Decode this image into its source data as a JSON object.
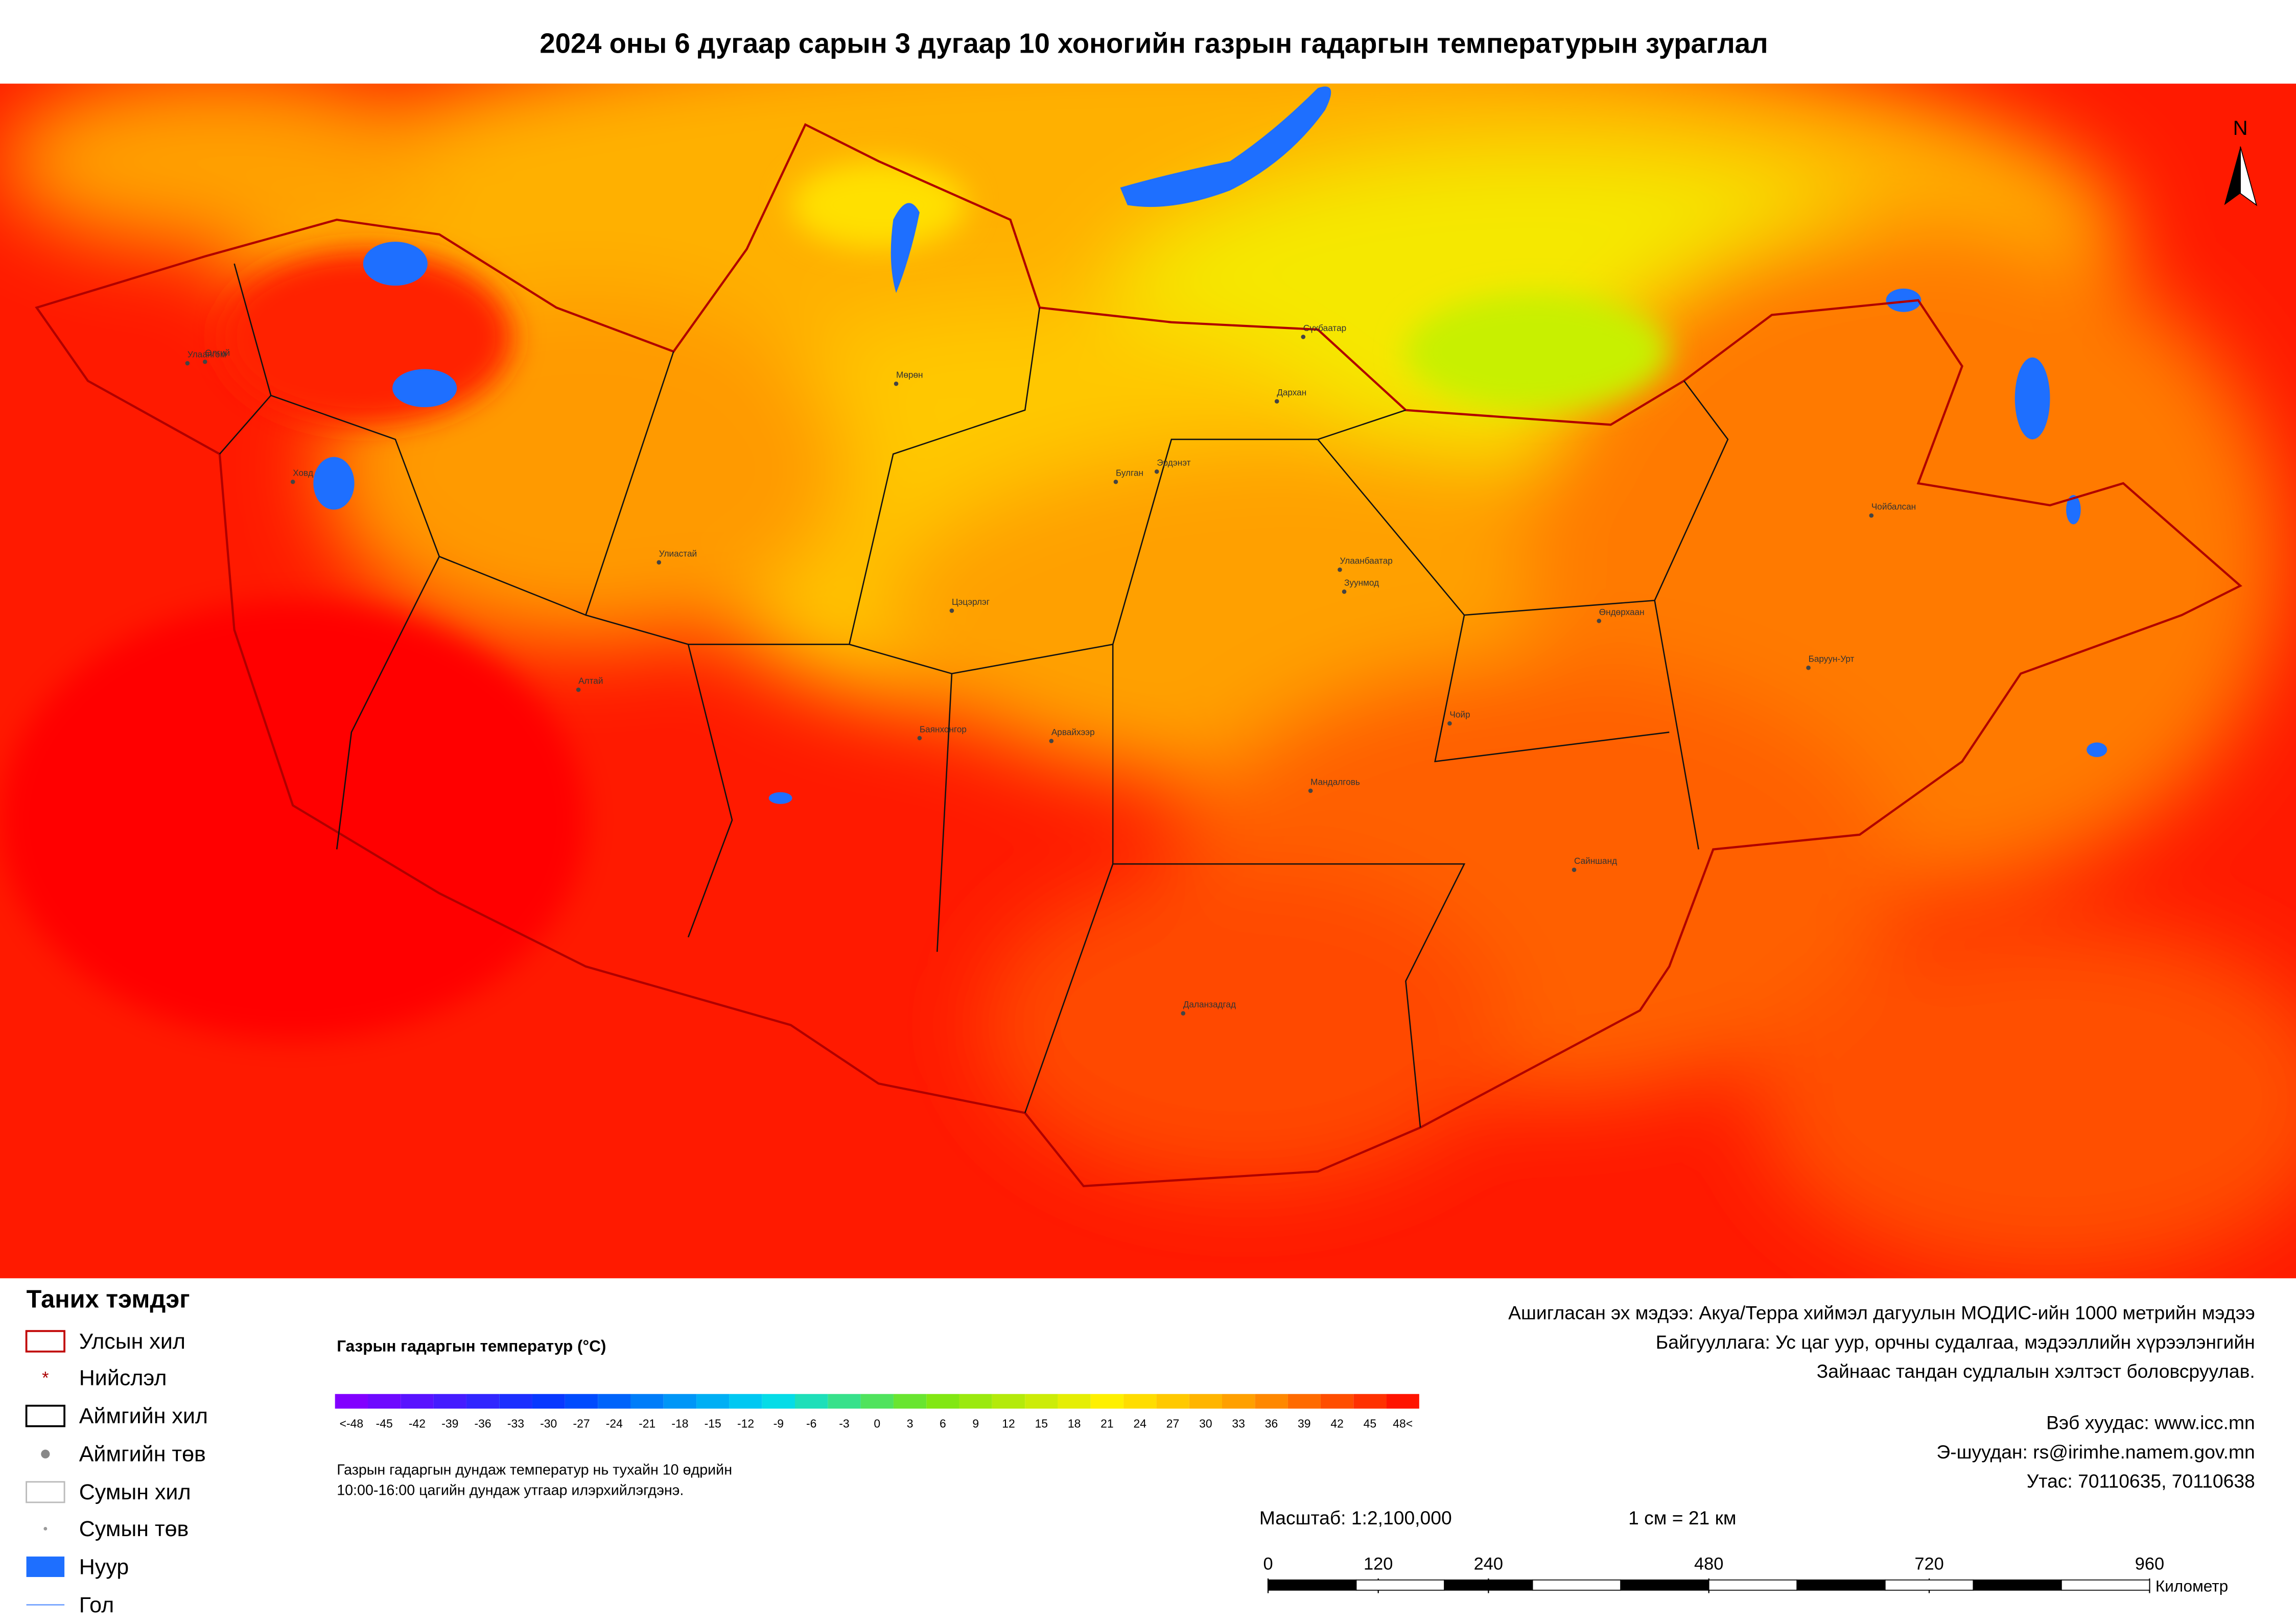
{
  "title": "2024 оны 6 дугаар сарын 3 дугаар 10 хоногийн газрын гадаргын температурын зураглал",
  "north": "N",
  "places": [
    "Улаангом",
    "Өлгий",
    "Ховд",
    "Улиастай",
    "Мөрөн",
    "Алтай",
    "Цэцэрлэг",
    "Баянхонгор",
    "Арвайхээр",
    "Булган",
    "Эрдэнэт",
    "Сүхбаатар",
    "Дархан",
    "Улаанбаатар",
    "Зуунмод",
    "Чойр",
    "Мандалговь",
    "Даланзадгад",
    "Сайншанд",
    "Өндөрхаан",
    "Баруун-Урт",
    "Чойбалсан"
  ],
  "legend": {
    "title": "Таних тэмдэг",
    "items": [
      "Улсын хил",
      "Нийслэл",
      "Аймгийн хил",
      "Аймгийн төв",
      "Сумын хил",
      "Сумын төв",
      "Нуур",
      "Гол"
    ]
  },
  "colorbar": {
    "title": "Газрын гадаргын температур (°C)",
    "ticks": [
      {
        "value": -48,
        "label": "<-48"
      },
      -45,
      -42,
      -39,
      -36,
      -33,
      -30,
      -27,
      -24,
      -21,
      -18,
      -15,
      -12,
      -9,
      -6,
      -3,
      0,
      3,
      6,
      9,
      12,
      15,
      18,
      21,
      24,
      27,
      30,
      33,
      36,
      39,
      42,
      45,
      {
        "value": 48,
        "label": "48<"
      }
    ]
  },
  "note": [
    "Газрын гадаргын дундаж температур нь тухайн 10 өдрийн",
    "10:00-16:00 цагийн дундаж утгаар илэрхийлэгдэнэ."
  ],
  "source": [
    "Ашигласан эх мэдээ: Акуа/Терра хиймэл дагуулын МОДИС-ийн 1000 метрийн мэдээ",
    "Байгууллага: Ус цаг уур, орчны судалгаа, мэдээллийн хүрээлэнгийн",
    "Зайнаас тандан судлалын хэлтэст боловсруулав."
  ],
  "contacts": [
    "Вэб хуудас: www.icc.mn",
    "Э-шуудан: rs@irimhe.namem.gov.mn",
    "Утас: 70110635, 70110638"
  ],
  "scale": {
    "text": "Масштаб: 1:2,100,000",
    "equivalence": "1 см = 21 км",
    "ticks": [
      0,
      120,
      240,
      480,
      720,
      960
    ],
    "unit": "Километр"
  }
}
